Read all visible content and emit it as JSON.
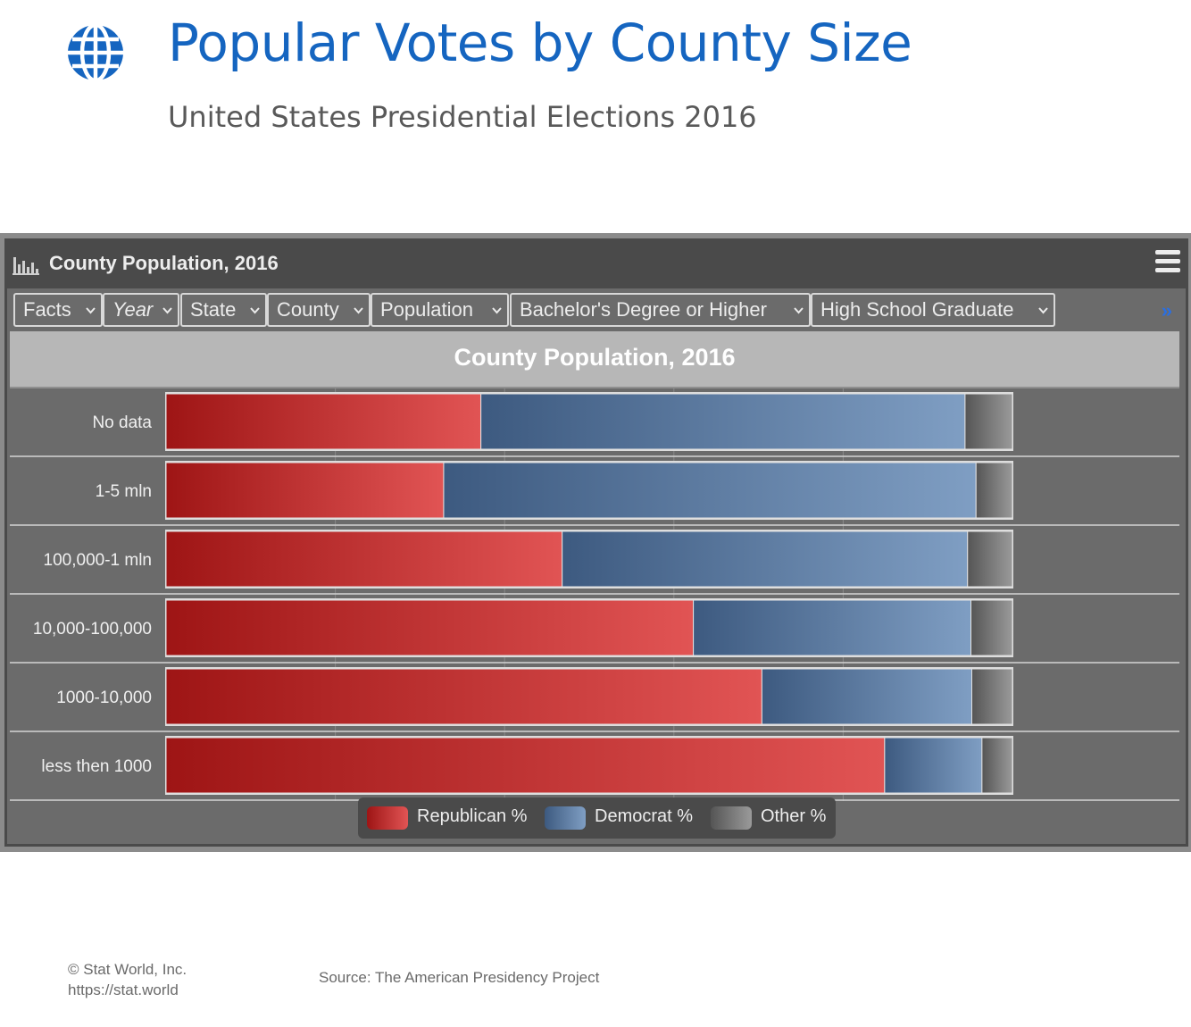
{
  "page": {
    "title": "Popular Votes by County Size",
    "subtitle": "United States Presidential Elections 2016",
    "icon": "globe-icon"
  },
  "panel": {
    "title": "County Population, 2016",
    "icon": "bar-chart-icon",
    "menu_icon": "hamburger-menu-icon"
  },
  "toolbar": {
    "filters": [
      {
        "label": "Facts"
      },
      {
        "label": "Year"
      },
      {
        "label": "State"
      },
      {
        "label": "County"
      },
      {
        "label": "Population"
      },
      {
        "label": "Bachelor's Degree or Higher"
      },
      {
        "label": "High School Graduate"
      }
    ],
    "more": "»"
  },
  "colors": {
    "republican": "#c0272b",
    "democrat": "#4f6f98",
    "other": "#7a7a7a",
    "panel_bg": "#6b6b6b",
    "header_bg": "#4a4a4a",
    "title_blue": "#1565c0"
  },
  "chart_data": {
    "type": "bar",
    "orientation": "horizontal",
    "stacked": "percent",
    "title": "County Population, 2016",
    "categories": [
      "No data",
      "1-5 mln",
      "100,000-1 mln",
      "10,000-100,000",
      "1000-10,000",
      "less then 1000"
    ],
    "series": [
      {
        "name": "Republican %",
        "color": "#c0272b",
        "values": [
          37.2,
          32.8,
          46.8,
          62.3,
          70.4,
          84.9
        ]
      },
      {
        "name": "Democrat %",
        "color": "#4f6f98",
        "values": [
          57.2,
          62.9,
          47.9,
          32.8,
          24.8,
          11.5
        ]
      },
      {
        "name": "Other %",
        "color": "#7a7a7a",
        "values": [
          5.6,
          4.3,
          5.3,
          4.9,
          4.8,
          3.6
        ]
      }
    ],
    "xlim": [
      0,
      100
    ],
    "grid": true,
    "legend": "bottom-center"
  },
  "footer": {
    "copyright": "© Stat World, Inc.",
    "url": "https://stat.world",
    "source": "Source: The American Presidency Project"
  }
}
